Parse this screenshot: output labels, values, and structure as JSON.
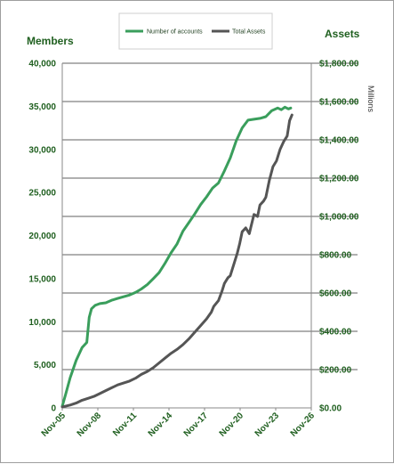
{
  "chart_data": {
    "type": "line",
    "left_axis_title": "Members",
    "right_axis_title": "Assets",
    "right_axis_unit": "Millions",
    "x_tick_labels": [
      "Nov-05",
      "Nov-08",
      "Nov-11",
      "Nov-14",
      "Nov-17",
      "Nov-20",
      "Nov-23",
      "Nov-26"
    ],
    "x_range": [
      2005.83,
      2026.83
    ],
    "y_left_ticks": [
      "0",
      "5,000",
      "10,000",
      "15,000",
      "20,000",
      "25,000",
      "30,000",
      "35,000",
      "40,000"
    ],
    "y_left_range": [
      0,
      40000
    ],
    "y_right_ticks": [
      "$0.00",
      "$200.00",
      "$400.00",
      "$600.00",
      "$800.00",
      "$1,000.00",
      "$1,200.00",
      "$1,400.00",
      "$1,600.00",
      "$1,800.00"
    ],
    "y_right_range": [
      0,
      1800
    ],
    "grid": "horizontal-right-axis",
    "legend_position": "top-center",
    "colors": {
      "members": "#3a9e5c",
      "assets": "#555555",
      "text": "#1f5f1f"
    },
    "series": [
      {
        "name": "Number of accounts",
        "axis": "left",
        "x": [
          2005.83,
          2006.1,
          2006.5,
          2007.0,
          2007.5,
          2007.9,
          2008.1,
          2008.3,
          2008.6,
          2009.0,
          2009.5,
          2010.0,
          2010.5,
          2011.0,
          2011.5,
          2012.0,
          2012.5,
          2013.0,
          2013.5,
          2014.0,
          2014.5,
          2015.0,
          2015.5,
          2016.0,
          2016.5,
          2017.0,
          2017.5,
          2018.0,
          2018.5,
          2019.0,
          2019.5,
          2020.0,
          2020.5,
          2021.0,
          2021.5,
          2022.0,
          2022.5,
          2023.0,
          2023.5,
          2024.0,
          2024.3,
          2024.6,
          2024.9,
          2025.1
        ],
        "values": [
          200,
          1500,
          3500,
          5500,
          7000,
          7600,
          10500,
          11500,
          11900,
          12100,
          12200,
          12500,
          12700,
          12900,
          13100,
          13400,
          13800,
          14300,
          15000,
          15700,
          16800,
          18000,
          19000,
          20500,
          21500,
          22500,
          23600,
          24500,
          25500,
          26100,
          27500,
          29000,
          31000,
          32500,
          33400,
          33500,
          33600,
          33800,
          34500,
          34800,
          34600,
          34900,
          34700,
          34800
        ]
      },
      {
        "name": "Total Assets",
        "axis": "right",
        "x": [
          2005.83,
          2006.5,
          2007.0,
          2007.5,
          2008.0,
          2008.5,
          2009.0,
          2009.5,
          2010.0,
          2010.5,
          2011.0,
          2011.5,
          2012.0,
          2012.5,
          2013.0,
          2013.5,
          2014.0,
          2014.5,
          2015.0,
          2015.5,
          2016.0,
          2016.5,
          2017.0,
          2017.5,
          2018.0,
          2018.4,
          2018.6,
          2019.0,
          2019.3,
          2019.5,
          2019.8,
          2020.0,
          2020.3,
          2020.6,
          2020.8,
          2021.0,
          2021.3,
          2021.6,
          2021.8,
          2022.0,
          2022.3,
          2022.5,
          2022.8,
          2023.0,
          2023.3,
          2023.6,
          2023.9,
          2024.2,
          2024.5,
          2024.8,
          2025.0,
          2025.2
        ],
        "values": [
          5,
          15,
          25,
          40,
          50,
          60,
          75,
          90,
          105,
          120,
          130,
          140,
          155,
          175,
          190,
          210,
          235,
          260,
          285,
          305,
          330,
          360,
          395,
          430,
          465,
          500,
          530,
          560,
          610,
          650,
          680,
          690,
          750,
          810,
          860,
          920,
          940,
          910,
          960,
          1010,
          1000,
          1060,
          1080,
          1100,
          1190,
          1260,
          1290,
          1350,
          1390,
          1420,
          1500,
          1530
        ]
      }
    ]
  }
}
